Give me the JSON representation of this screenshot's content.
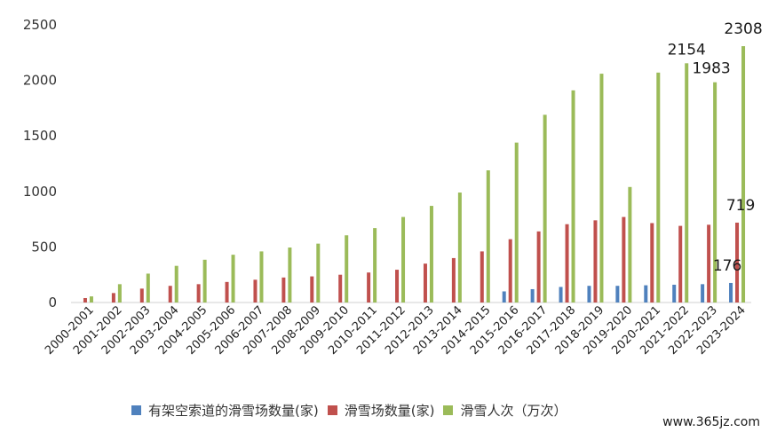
{
  "chart_data": {
    "type": "bar",
    "categories": [
      "2000-2001",
      "2001-2002",
      "2002-2003",
      "2003-2004",
      "2004-2005",
      "2005-2006",
      "2006-2007",
      "2007-2008",
      "2008-2009",
      "2009-2010",
      "2010-2011",
      "2011-2012",
      "2012-2013",
      "2013-2014",
      "2014-2015",
      "2015-2016",
      "2016-2017",
      "2017-2018",
      "2018-2019",
      "2019-2020",
      "2020-2021",
      "2021-2022",
      "2022-2023",
      "2023-2024"
    ],
    "series": [
      {
        "name": "有架空索道的滑雪场数量(家)",
        "color": "#4f81bd",
        "values": [
          0,
          0,
          0,
          0,
          0,
          0,
          0,
          0,
          0,
          0,
          0,
          0,
          0,
          0,
          0,
          100,
          120,
          140,
          150,
          150,
          155,
          160,
          165,
          176
        ]
      },
      {
        "name": "滑雪场数量(家)",
        "color": "#c0504d",
        "values": [
          40,
          85,
          125,
          150,
          165,
          185,
          205,
          225,
          235,
          250,
          270,
          295,
          350,
          400,
          460,
          570,
          640,
          705,
          740,
          770,
          715,
          690,
          700,
          719
        ]
      },
      {
        "name": "滑雪人次（万次）",
        "color": "#9bbb59",
        "values": [
          55,
          165,
          260,
          330,
          385,
          430,
          460,
          495,
          530,
          605,
          670,
          770,
          870,
          990,
          1190,
          1440,
          1690,
          1910,
          2060,
          1040,
          2070,
          2154,
          1983,
          2308
        ]
      }
    ],
    "data_labels": [
      {
        "series": 2,
        "index": 21,
        "text": "2154"
      },
      {
        "series": 2,
        "index": 22,
        "text": "1983"
      },
      {
        "series": 2,
        "index": 23,
        "text": "2308"
      },
      {
        "series": 1,
        "index": 23,
        "text": "719"
      },
      {
        "series": 0,
        "index": 23,
        "text": "176"
      }
    ],
    "yticks": [
      "0",
      "500",
      "1000",
      "1500",
      "2000",
      "2500"
    ],
    "ylim": [
      0,
      2500
    ],
    "grid": false,
    "legend_position": "bottom"
  },
  "watermark": "www.365jz.com"
}
